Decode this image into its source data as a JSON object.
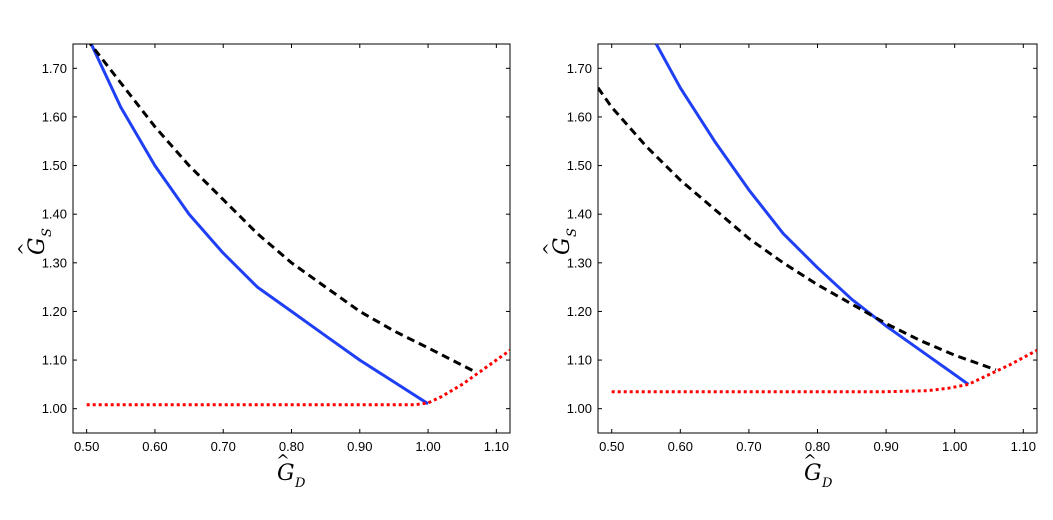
{
  "chart_data": [
    {
      "type": "line",
      "xlabel": "Ĝ_D",
      "ylabel": "Ĝ_S",
      "xlabel_main": "G",
      "xlabel_sub": "D",
      "ylabel_main": "G",
      "ylabel_sub": "S",
      "hat_glyph": "^",
      "xlim": [
        0.48,
        1.12
      ],
      "ylim": [
        0.95,
        1.75
      ],
      "xticks": [
        0.5,
        0.6,
        0.7,
        0.8,
        0.9,
        1.0,
        1.1
      ],
      "xtick_labels": [
        "0.50",
        "0.60",
        "0.70",
        "0.80",
        "0.90",
        "1.00",
        "1.10"
      ],
      "yticks": [
        1.0,
        1.1,
        1.2,
        1.3,
        1.4,
        1.5,
        1.6,
        1.7
      ],
      "ytick_labels": [
        "1.00",
        "1.10",
        "1.20",
        "1.30",
        "1.40",
        "1.50",
        "1.60",
        "1.70"
      ],
      "series": [
        {
          "name": "solid blue",
          "color": "#1f3ff5",
          "style": "solid",
          "x": [
            0.5,
            0.55,
            0.6,
            0.65,
            0.7,
            0.75,
            0.8,
            0.85,
            0.9,
            0.95,
            1.0
          ],
          "y": [
            1.77,
            1.62,
            1.5,
            1.4,
            1.32,
            1.25,
            1.2,
            1.15,
            1.1,
            1.055,
            1.01
          ]
        },
        {
          "name": "black dashed",
          "color": "#000000",
          "style": "dashed",
          "x": [
            0.5,
            0.55,
            0.6,
            0.65,
            0.7,
            0.75,
            0.8,
            0.85,
            0.9,
            0.95,
            1.0,
            1.07
          ],
          "y": [
            1.76,
            1.67,
            1.58,
            1.5,
            1.43,
            1.36,
            1.3,
            1.25,
            1.2,
            1.16,
            1.125,
            1.075
          ]
        },
        {
          "name": "red dotted",
          "color": "#ff0000",
          "style": "dotted",
          "x": [
            0.5,
            0.6,
            0.7,
            0.8,
            0.9,
            0.98,
            1.0,
            1.02,
            1.05,
            1.08,
            1.12
          ],
          "y": [
            1.008,
            1.008,
            1.008,
            1.008,
            1.008,
            1.008,
            1.012,
            1.025,
            1.05,
            1.08,
            1.12
          ]
        }
      ]
    },
    {
      "type": "line",
      "xlabel": "Ĝ_D",
      "ylabel": "Ĝ_S",
      "xlabel_main": "G",
      "xlabel_sub": "D",
      "ylabel_main": "G",
      "ylabel_sub": "S",
      "hat_glyph": "^",
      "xlim": [
        0.48,
        1.12
      ],
      "ylim": [
        0.95,
        1.75
      ],
      "xticks": [
        0.5,
        0.6,
        0.7,
        0.8,
        0.9,
        1.0,
        1.1
      ],
      "xtick_labels": [
        "0.50",
        "0.60",
        "0.70",
        "0.80",
        "0.90",
        "1.00",
        "1.10"
      ],
      "yticks": [
        1.0,
        1.1,
        1.2,
        1.3,
        1.4,
        1.5,
        1.6,
        1.7
      ],
      "ytick_labels": [
        "1.00",
        "1.10",
        "1.20",
        "1.30",
        "1.40",
        "1.50",
        "1.60",
        "1.70"
      ],
      "series": [
        {
          "name": "solid blue",
          "color": "#1f3ff5",
          "style": "solid",
          "x": [
            0.565,
            0.6,
            0.65,
            0.7,
            0.75,
            0.8,
            0.85,
            0.9,
            0.95,
            1.0,
            1.02
          ],
          "y": [
            1.75,
            1.66,
            1.55,
            1.45,
            1.36,
            1.29,
            1.225,
            1.17,
            1.12,
            1.07,
            1.05
          ]
        },
        {
          "name": "black dashed",
          "color": "#000000",
          "style": "dashed",
          "x": [
            0.48,
            0.5,
            0.55,
            0.6,
            0.65,
            0.7,
            0.75,
            0.8,
            0.85,
            0.9,
            0.95,
            1.0,
            1.06
          ],
          "y": [
            1.66,
            1.62,
            1.54,
            1.47,
            1.41,
            1.35,
            1.3,
            1.255,
            1.215,
            1.175,
            1.14,
            1.11,
            1.08
          ]
        },
        {
          "name": "red dotted",
          "color": "#ff0000",
          "style": "dotted",
          "x": [
            0.5,
            0.6,
            0.7,
            0.8,
            0.9,
            0.96,
            0.99,
            1.02,
            1.05,
            1.08,
            1.12
          ],
          "y": [
            1.035,
            1.035,
            1.035,
            1.035,
            1.035,
            1.037,
            1.042,
            1.05,
            1.07,
            1.09,
            1.12
          ]
        }
      ]
    }
  ]
}
